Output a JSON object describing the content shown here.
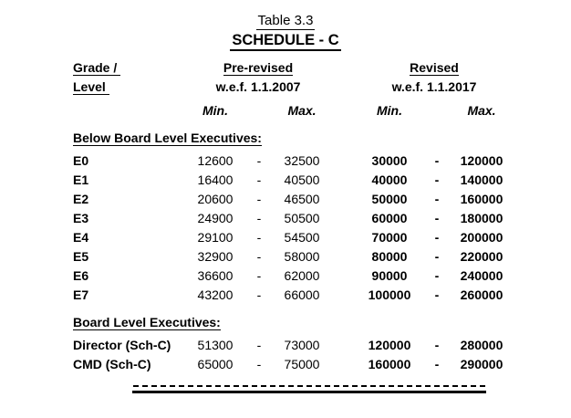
{
  "titles": {
    "table_no": "Table 3.3",
    "schedule": "SCHEDULE - C"
  },
  "header": {
    "grade_line1": "Grade /",
    "grade_line2": "Level",
    "pre_revised": {
      "label": "Pre-revised",
      "wef": "w.e.f. 1.1.2007",
      "min": "Min.",
      "max": "Max."
    },
    "revised": {
      "label": "Revised",
      "wef": "w.e.f. 1.1.2017",
      "min": "Min.",
      "max": "Max."
    }
  },
  "range_separator": "-",
  "sections": [
    {
      "heading": "Below Board Level Executives:",
      "rows": [
        {
          "grade": "E0",
          "pre_min": "12600",
          "pre_max": "32500",
          "rev_min": "30000",
          "rev_max": "120000"
        },
        {
          "grade": "E1",
          "pre_min": "16400",
          "pre_max": "40500",
          "rev_min": "40000",
          "rev_max": "140000"
        },
        {
          "grade": "E2",
          "pre_min": "20600",
          "pre_max": "46500",
          "rev_min": "50000",
          "rev_max": "160000"
        },
        {
          "grade": "E3",
          "pre_min": "24900",
          "pre_max": "50500",
          "rev_min": "60000",
          "rev_max": "180000"
        },
        {
          "grade": "E4",
          "pre_min": "29100",
          "pre_max": "54500",
          "rev_min": "70000",
          "rev_max": "200000"
        },
        {
          "grade": "E5",
          "pre_min": "32900",
          "pre_max": "58000",
          "rev_min": "80000",
          "rev_max": "220000"
        },
        {
          "grade": "E6",
          "pre_min": "36600",
          "pre_max": "62000",
          "rev_min": "90000",
          "rev_max": "240000"
        },
        {
          "grade": "E7",
          "pre_min": "43200",
          "pre_max": "66000",
          "rev_min": "100000",
          "rev_max": "260000"
        }
      ]
    },
    {
      "heading": "Board Level Executives:",
      "rows": [
        {
          "grade": "Director (Sch-C)",
          "pre_min": "51300",
          "pre_max": "73000",
          "rev_min": "120000",
          "rev_max": "280000"
        },
        {
          "grade": "CMD (Sch-C)",
          "pre_min": "65000",
          "pre_max": "75000",
          "rev_min": "160000",
          "rev_max": "290000"
        }
      ]
    }
  ],
  "colors": {
    "text": "#000000",
    "background": "#ffffff"
  }
}
